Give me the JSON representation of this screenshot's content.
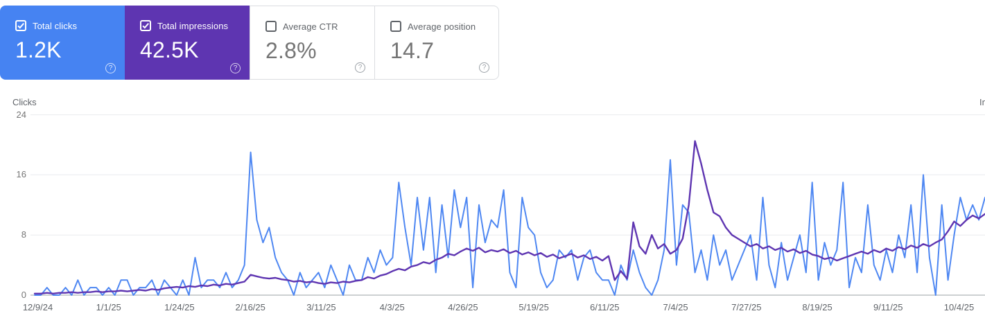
{
  "colors": {
    "clicks_blue": "#4683f2",
    "clicks_line_blue": "#4e87f2",
    "impressions_purple": "#5e35b1",
    "gridline": "#e9ebee",
    "axis_line": "#9aa0a6"
  },
  "icons": {
    "help_glyph": "?",
    "checked_checkbox": "checkbox-checked",
    "unchecked_checkbox": "checkbox-unchecked"
  },
  "cards": [
    {
      "label": "Total clicks",
      "value": "1.2K",
      "checked": true
    },
    {
      "label": "Total impressions",
      "value": "42.5K",
      "checked": true
    },
    {
      "label": "Average CTR",
      "value": "2.8%",
      "checked": false
    },
    {
      "label": "Average position",
      "value": "14.7",
      "checked": false
    }
  ],
  "chart_data": {
    "type": "line",
    "left_axis_label": "Clicks",
    "right_axis_label": "Impressions",
    "y_ticks": [
      24,
      16,
      8,
      0
    ],
    "ylim_left": [
      0,
      24
    ],
    "grid": true,
    "legend_position": "none",
    "x_labels": [
      "12/9/24",
      "1/1/25",
      "1/24/25",
      "2/16/25",
      "3/11/25",
      "4/3/25",
      "4/26/25",
      "5/19/25",
      "6/11/25",
      "7/4/25",
      "7/27/25",
      "8/19/25",
      "9/11/25",
      "10/4/25"
    ],
    "x_range_note": "daily points 12/9/24 through mid-10/25, sampled ~every 2 days",
    "series": [
      {
        "key": "clicks",
        "name": "Total clicks",
        "color": "#4e87f2",
        "width": 2,
        "axis": "left",
        "values": [
          0,
          0,
          1,
          0,
          0,
          1,
          0,
          2,
          0,
          1,
          1,
          0,
          1,
          0,
          2,
          2,
          0,
          1,
          1,
          2,
          0,
          2,
          1,
          0,
          2,
          0,
          5,
          1,
          2,
          2,
          1,
          3,
          1,
          2,
          4,
          19,
          10,
          7,
          9,
          5,
          3,
          2,
          0,
          3,
          1,
          2,
          3,
          1,
          4,
          2,
          0,
          4,
          2,
          2,
          5,
          3,
          6,
          4,
          5,
          15,
          9,
          4,
          13,
          6,
          13,
          3,
          12,
          5,
          14,
          9,
          13,
          1,
          12,
          7,
          10,
          9,
          14,
          3,
          1,
          13,
          9,
          8,
          3,
          1,
          2,
          6,
          5,
          6,
          2,
          5,
          6,
          3,
          2,
          2,
          0,
          4,
          2,
          6,
          3,
          1,
          0,
          2,
          6,
          18,
          4,
          12,
          11,
          3,
          6,
          2,
          8,
          4,
          6,
          2,
          4,
          6,
          8,
          2,
          13,
          4,
          1,
          7,
          2,
          5,
          8,
          3,
          15,
          2,
          7,
          4,
          6,
          15,
          1,
          5,
          3,
          12,
          4,
          2,
          6,
          3,
          8,
          5,
          12,
          3,
          16,
          5,
          0,
          12,
          2,
          8,
          13,
          10,
          12,
          10,
          13
        ]
      },
      {
        "key": "impressions",
        "name": "Total impressions",
        "color": "#5e35b1",
        "width": 2.4,
        "axis": "right-hidden",
        "values": [
          0.2,
          0.2,
          0.3,
          0.2,
          0.3,
          0.3,
          0.4,
          0.3,
          0.4,
          0.4,
          0.5,
          0.4,
          0.5,
          0.5,
          0.6,
          0.5,
          0.6,
          0.7,
          0.6,
          0.8,
          0.7,
          0.9,
          1.0,
          1.1,
          1.0,
          1.2,
          1.1,
          1.3,
          1.2,
          1.4,
          1.3,
          1.5,
          1.4,
          1.6,
          1.8,
          2.7,
          2.5,
          2.3,
          2.2,
          2.3,
          2.1,
          2.0,
          1.8,
          1.9,
          1.7,
          1.8,
          1.6,
          1.5,
          1.7,
          1.6,
          1.8,
          1.7,
          1.9,
          2.0,
          2.4,
          2.2,
          2.6,
          2.8,
          3.2,
          3.5,
          3.3,
          3.8,
          4.0,
          4.4,
          4.2,
          4.7,
          5.0,
          5.5,
          5.3,
          5.8,
          6.2,
          5.9,
          6.3,
          5.7,
          6.0,
          5.8,
          6.1,
          5.6,
          5.9,
          5.4,
          5.7,
          5.3,
          5.6,
          5.1,
          5.4,
          4.9,
          5.2,
          5.5,
          5.0,
          5.3,
          4.8,
          5.1,
          4.6,
          5.2,
          2.0,
          3.2,
          2.2,
          9.7,
          6.5,
          5.5,
          8.0,
          6.2,
          6.8,
          5.5,
          6.0,
          7.5,
          12.0,
          20.5,
          17.5,
          14.0,
          11.0,
          10.5,
          9.0,
          8.0,
          7.5,
          7.0,
          6.5,
          6.8,
          6.2,
          6.5,
          6.0,
          6.3,
          5.8,
          6.1,
          5.6,
          5.9,
          5.4,
          5.2,
          4.8,
          5.0,
          4.6,
          4.9,
          5.2,
          5.5,
          5.8,
          5.5,
          6.0,
          5.7,
          6.2,
          5.9,
          6.4,
          6.1,
          6.6,
          6.3,
          6.8,
          6.5,
          7.0,
          7.4,
          8.5,
          9.8,
          9.2,
          10.0,
          10.6,
          10.2,
          10.8
        ]
      }
    ]
  }
}
